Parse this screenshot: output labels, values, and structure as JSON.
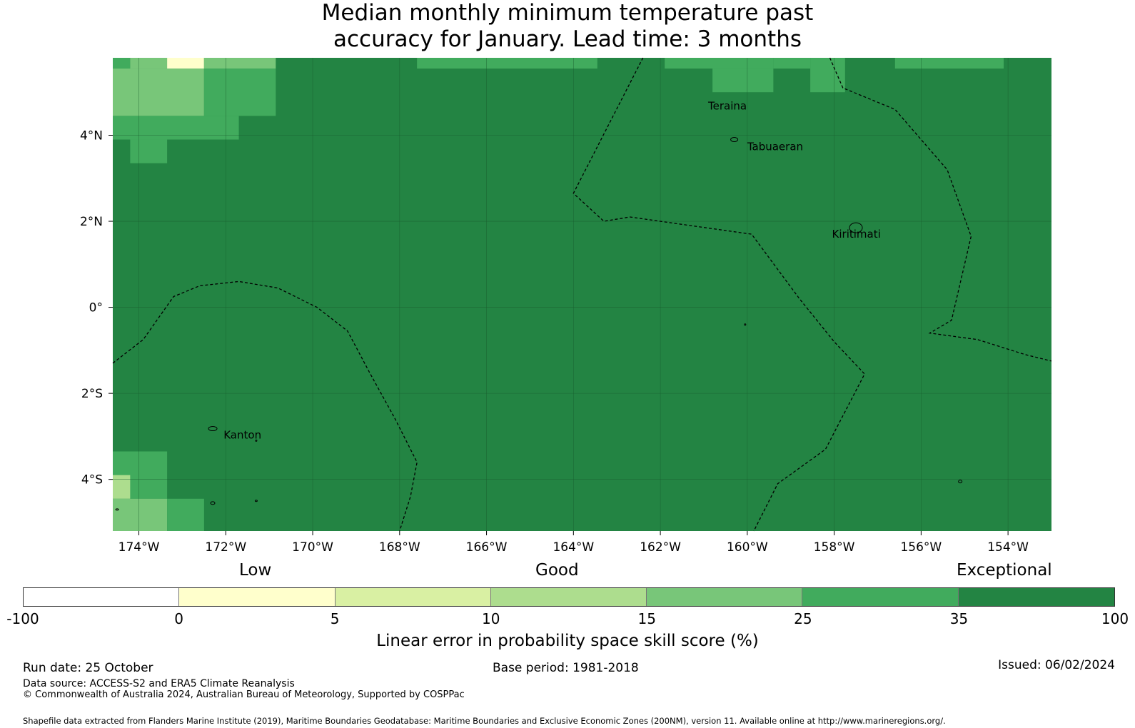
{
  "title_lines": [
    "Median monthly minimum temperature past",
    "accuracy for January. Lead time: 3 months"
  ],
  "map": {
    "lon_range": [
      -174.6,
      -153.0
    ],
    "lat_range": [
      -5.2,
      5.8
    ],
    "x_ticks": [
      {
        "lon": -174,
        "label": "174°W"
      },
      {
        "lon": -172,
        "label": "172°W"
      },
      {
        "lon": -170,
        "label": "170°W"
      },
      {
        "lon": -168,
        "label": "168°W"
      },
      {
        "lon": -166,
        "label": "166°W"
      },
      {
        "lon": -164,
        "label": "164°W"
      },
      {
        "lon": -162,
        "label": "162°W"
      },
      {
        "lon": -160,
        "label": "160°W"
      },
      {
        "lon": -158,
        "label": "158°W"
      },
      {
        "lon": -156,
        "label": "156°W"
      },
      {
        "lon": -154,
        "label": "154°W"
      }
    ],
    "y_ticks": [
      {
        "lat": 4,
        "label": "4°N"
      },
      {
        "lat": 2,
        "label": "2°N"
      },
      {
        "lat": 0,
        "label": "0°"
      },
      {
        "lat": -2,
        "label": "2°S"
      },
      {
        "lat": -4,
        "label": "4°S"
      }
    ],
    "place_labels": [
      {
        "name": "Teraina",
        "lon": -160.9,
        "lat": 4.6
      },
      {
        "name": "Tabuaeran",
        "lon": -160.0,
        "lat": 3.65
      },
      {
        "name": "Kiritimati",
        "lon": -158.05,
        "lat": 1.62
      },
      {
        "name": "Kanton",
        "lon": -172.05,
        "lat": -3.05
      }
    ],
    "background_category": 6,
    "cells": [
      {
        "lon0": -174.6,
        "lon1": -174.2,
        "lat0": 5.55,
        "lat1": 5.8,
        "cat": 5
      },
      {
        "lon0": -174.2,
        "lon1": -173.35,
        "lat0": 5.55,
        "lat1": 5.8,
        "cat": 4
      },
      {
        "lon0": -173.35,
        "lon1": -172.5,
        "lat0": 5.55,
        "lat1": 5.8,
        "cat": 1
      },
      {
        "lon0": -172.5,
        "lon1": -170.85,
        "lat0": 5.55,
        "lat1": 5.8,
        "cat": 4
      },
      {
        "lon0": -174.6,
        "lon1": -172.5,
        "lat0": 4.45,
        "lat1": 5.55,
        "cat": 4
      },
      {
        "lon0": -172.5,
        "lon1": -170.85,
        "lat0": 4.45,
        "lat1": 5.55,
        "cat": 5
      },
      {
        "lon0": -174.6,
        "lon1": -171.7,
        "lat0": 3.9,
        "lat1": 4.45,
        "cat": 5
      },
      {
        "lon0": -174.2,
        "lon1": -173.35,
        "lat0": 3.35,
        "lat1": 3.9,
        "cat": 5
      },
      {
        "lon0": -167.6,
        "lon1": -163.45,
        "lat0": 5.55,
        "lat1": 5.8,
        "cat": 5
      },
      {
        "lon0": -161.9,
        "lon1": -159.4,
        "lat0": 5.55,
        "lat1": 5.8,
        "cat": 5
      },
      {
        "lon0": -160.8,
        "lon1": -159.4,
        "lat0": 5.0,
        "lat1": 5.55,
        "cat": 5
      },
      {
        "lon0": -159.4,
        "lon1": -158.55,
        "lat0": 5.55,
        "lat1": 5.8,
        "cat": 5
      },
      {
        "lon0": -158.55,
        "lon1": -157.75,
        "lat0": 5.0,
        "lat1": 5.8,
        "cat": 5
      },
      {
        "lon0": -156.6,
        "lon1": -154.1,
        "lat0": 5.55,
        "lat1": 5.8,
        "cat": 5
      },
      {
        "lon0": -174.6,
        "lon1": -173.35,
        "lat0": -4.45,
        "lat1": -3.35,
        "cat": 5
      },
      {
        "lon0": -174.6,
        "lon1": -174.2,
        "lat0": -4.45,
        "lat1": -3.9,
        "cat": 3
      },
      {
        "lon0": -174.6,
        "lon1": -173.35,
        "lat0": -5.2,
        "lat1": -4.45,
        "cat": 4
      },
      {
        "lon0": -173.35,
        "lon1": -172.5,
        "lat0": -5.2,
        "lat1": -4.45,
        "cat": 5
      }
    ],
    "eez_lines": [
      [
        [
          -174.6,
          -1.3
        ],
        [
          -173.9,
          -0.75
        ],
        [
          -173.2,
          0.25
        ],
        [
          -172.6,
          0.5
        ],
        [
          -171.7,
          0.6
        ],
        [
          -170.8,
          0.45
        ],
        [
          -169.9,
          0.0
        ],
        [
          -169.2,
          -0.55
        ],
        [
          -168.7,
          -1.5
        ],
        [
          -168.1,
          -2.6
        ],
        [
          -167.6,
          -3.6
        ],
        [
          -167.75,
          -4.4
        ],
        [
          -168.0,
          -5.2
        ]
      ],
      [
        [
          -158.1,
          5.8
        ],
        [
          -157.8,
          5.1
        ],
        [
          -156.6,
          4.6
        ],
        [
          -155.4,
          3.2
        ],
        [
          -154.85,
          1.65
        ],
        [
          -155.3,
          -0.3
        ],
        [
          -155.8,
          -0.6
        ],
        [
          -154.7,
          -0.75
        ],
        [
          -153.6,
          -1.1
        ],
        [
          -153.0,
          -1.25
        ]
      ],
      [
        [
          -162.4,
          5.8
        ],
        [
          -164.0,
          2.65
        ],
        [
          -163.3,
          2.0
        ],
        [
          -162.7,
          2.1
        ],
        [
          -161.3,
          1.9
        ],
        [
          -159.9,
          1.7
        ],
        [
          -158.8,
          0.2
        ],
        [
          -158.0,
          -0.8
        ],
        [
          -157.3,
          -1.55
        ],
        [
          -158.2,
          -3.3
        ],
        [
          -159.3,
          -4.1
        ],
        [
          -159.85,
          -5.2
        ]
      ]
    ],
    "islands": [
      {
        "lon": -172.3,
        "lat": -2.82,
        "rx": 6,
        "ry": 3
      },
      {
        "lon": -171.3,
        "lat": -3.1,
        "rx": 1,
        "ry": 1
      },
      {
        "lon": -172.3,
        "lat": -4.55,
        "rx": 3,
        "ry": 2
      },
      {
        "lon": -171.3,
        "lat": -4.5,
        "rx": 1.5,
        "ry": 1
      },
      {
        "lon": -174.5,
        "lat": -4.7,
        "rx": 2,
        "ry": 1
      },
      {
        "lon": -160.3,
        "lat": 3.9,
        "rx": 5,
        "ry": 3
      },
      {
        "lon": -157.5,
        "lat": 1.85,
        "rx": 9,
        "ry": 7
      },
      {
        "lon": -155.1,
        "lat": -4.05,
        "rx": 2.5,
        "ry": 2
      },
      {
        "lon": -160.05,
        "lat": -0.4,
        "rx": 1,
        "ry": 1
      }
    ]
  },
  "colorbar": {
    "segments": [
      {
        "color": "#ffffff"
      },
      {
        "color": "#ffffcc"
      },
      {
        "color": "#d9f0a3"
      },
      {
        "color": "#addd8e"
      },
      {
        "color": "#78c679"
      },
      {
        "color": "#41ab5d"
      },
      {
        "color": "#238443"
      }
    ],
    "ticks": [
      "-100",
      "0",
      "5",
      "10",
      "15",
      "25",
      "35",
      "100"
    ],
    "category_labels": {
      "low": "Low",
      "good": "Good",
      "exceptional": "Exceptional"
    },
    "title": "Linear error in probability space skill score (%)"
  },
  "footer": {
    "run_date": "Run date: 25 October",
    "base_period": "Base period: 1981-2018",
    "issued": "Issued: 06/02/2024",
    "data_source": "Data source: ACCESS-S2 and ERA5 Climate Reanalysis",
    "copyright": "© Commonwealth of Australia 2024, Australian Bureau of Meteorology, Supported by COSPPac",
    "shapefile": "Shapefile data extracted from Flanders Marine Institute (2019), Maritime Boundaries Geodatabase: Maritime Boundaries and Exclusive Economic Zones (200NM), version 11. Available online at http://www.marineregions.org/."
  }
}
